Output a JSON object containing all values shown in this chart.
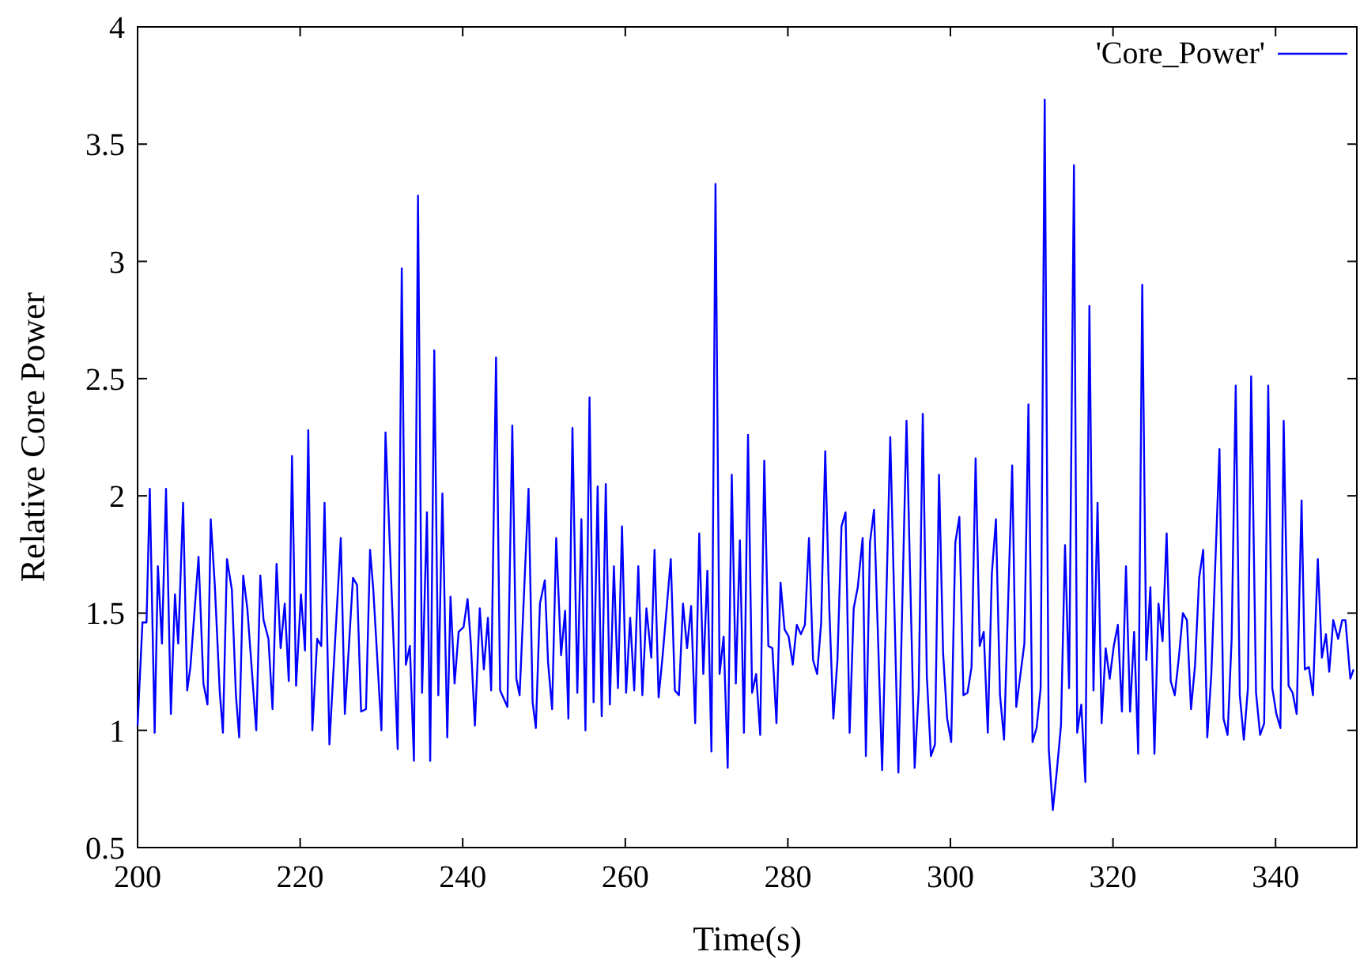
{
  "chart_data": {
    "type": "line",
    "xlabel": "Time(s)",
    "ylabel": "Relative Core Power",
    "xlim": [
      200,
      350
    ],
    "ylim": [
      0.5,
      4
    ],
    "xticks": [
      200,
      220,
      240,
      260,
      280,
      300,
      320,
      340
    ],
    "yticks": [
      0.5,
      1,
      1.5,
      2,
      2.5,
      3,
      3.5,
      4
    ],
    "grid": false,
    "legend": "top right",
    "marker": "none",
    "line_style": "solid",
    "series": [
      {
        "name": "'Core_Power'",
        "color": "#0000ff",
        "x": [
          200.0,
          200.6,
          201.1,
          201.5,
          202.1,
          202.5,
          203.0,
          203.5,
          204.1,
          204.6,
          205.0,
          205.6,
          206.1,
          206.5,
          207.5,
          208.1,
          208.6,
          209.0,
          209.5,
          210.1,
          210.5,
          211.0,
          211.6,
          212.1,
          212.5,
          213.0,
          213.5,
          214.6,
          215.1,
          215.5,
          216.1,
          216.6,
          217.1,
          217.6,
          218.1,
          218.6,
          219.0,
          219.5,
          220.1,
          220.6,
          221.0,
          221.5,
          222.1,
          222.6,
          223.0,
          223.6,
          225.0,
          225.5,
          226.5,
          227.0,
          227.5,
          228.1,
          228.6,
          229.0,
          230.0,
          230.5,
          232.0,
          232.5,
          233.0,
          233.5,
          234.0,
          234.5,
          235.0,
          235.6,
          236.0,
          236.5,
          237.0,
          237.5,
          238.1,
          238.5,
          239.0,
          239.5,
          240.1,
          240.6,
          241.0,
          241.5,
          242.1,
          242.6,
          243.1,
          243.5,
          244.1,
          244.6,
          245.5,
          246.1,
          246.6,
          247.0,
          248.1,
          248.6,
          249.0,
          249.5,
          250.1,
          250.5,
          251.0,
          251.5,
          252.1,
          252.6,
          253.0,
          253.5,
          254.1,
          254.6,
          255.1,
          255.6,
          256.1,
          256.6,
          257.1,
          257.6,
          258.1,
          258.6,
          259.1,
          259.6,
          260.1,
          260.6,
          261.1,
          261.6,
          262.1,
          262.6,
          263.2,
          263.6,
          264.1,
          264.6,
          265.6,
          266.1,
          266.6,
          267.1,
          267.6,
          268.1,
          268.6,
          269.1,
          269.6,
          270.1,
          270.6,
          271.1,
          271.6,
          272.1,
          272.6,
          273.1,
          273.6,
          274.1,
          274.6,
          275.1,
          275.6,
          276.1,
          276.6,
          277.1,
          277.6,
          278.1,
          278.6,
          279.1,
          279.6,
          280.1,
          280.6,
          281.1,
          281.6,
          282.1,
          282.6,
          283.1,
          283.6,
          284.1,
          284.6,
          285.1,
          285.6,
          286.1,
          286.6,
          287.1,
          287.6,
          288.1,
          288.6,
          289.2,
          289.6,
          290.1,
          290.6,
          291.6,
          292.6,
          293.6,
          294.6,
          295.6,
          296.1,
          296.6,
          297.1,
          297.6,
          298.1,
          298.6,
          299.1,
          299.6,
          300.1,
          300.6,
          301.1,
          301.6,
          302.1,
          302.6,
          303.1,
          303.6,
          304.1,
          304.6,
          305.1,
          305.6,
          306.1,
          306.6,
          307.6,
          308.1,
          309.1,
          309.6,
          310.1,
          310.6,
          311.1,
          311.6,
          312.1,
          312.6,
          313.1,
          313.6,
          314.1,
          314.6,
          315.2,
          315.6,
          316.1,
          316.6,
          317.1,
          317.6,
          318.1,
          318.6,
          319.1,
          319.6,
          320.1,
          320.6,
          321.1,
          321.6,
          322.1,
          322.6,
          323.1,
          323.6,
          324.1,
          324.6,
          325.1,
          325.6,
          326.1,
          326.6,
          327.1,
          327.6,
          328.1,
          328.6,
          329.1,
          329.6,
          330.1,
          330.6,
          331.1,
          331.6,
          332.1,
          333.1,
          333.6,
          334.1,
          334.6,
          335.1,
          335.6,
          336.1,
          336.6,
          337.0,
          337.6,
          338.1,
          338.6,
          339.1,
          339.6,
          340.1,
          340.6,
          341.0,
          341.6,
          342.1,
          342.6,
          343.2,
          343.6,
          344.1,
          344.6,
          345.2,
          345.7,
          346.2,
          346.6,
          347.1,
          347.7,
          348.2,
          348.6,
          349.2,
          349.6
        ],
        "values": [
          1.02,
          1.46,
          1.46,
          2.03,
          0.99,
          1.7,
          1.37,
          2.03,
          1.07,
          1.58,
          1.37,
          1.97,
          1.17,
          1.27,
          1.74,
          1.2,
          1.11,
          1.9,
          1.62,
          1.17,
          0.99,
          1.73,
          1.6,
          1.15,
          0.97,
          1.66,
          1.52,
          1.0,
          1.66,
          1.47,
          1.39,
          1.09,
          1.71,
          1.35,
          1.54,
          1.21,
          2.17,
          1.19,
          1.58,
          1.34,
          2.28,
          1.0,
          1.39,
          1.36,
          1.97,
          0.94,
          1.82,
          1.07,
          1.65,
          1.62,
          1.08,
          1.09,
          1.77,
          1.6,
          1.0,
          2.27,
          0.92,
          2.97,
          1.28,
          1.36,
          0.87,
          3.28,
          1.16,
          1.93,
          0.87,
          2.62,
          1.15,
          2.01,
          0.97,
          1.57,
          1.2,
          1.42,
          1.44,
          1.56,
          1.37,
          1.02,
          1.52,
          1.26,
          1.48,
          1.17,
          2.59,
          1.17,
          1.1,
          2.3,
          1.22,
          1.15,
          2.03,
          1.12,
          1.01,
          1.54,
          1.64,
          1.29,
          1.09,
          1.82,
          1.32,
          1.51,
          1.05,
          2.29,
          1.16,
          1.9,
          1.0,
          2.42,
          1.12,
          2.04,
          1.06,
          2.05,
          1.11,
          1.7,
          1.18,
          1.87,
          1.16,
          1.48,
          1.17,
          1.7,
          1.15,
          1.52,
          1.31,
          1.77,
          1.14,
          1.32,
          1.73,
          1.17,
          1.15,
          1.54,
          1.35,
          1.53,
          1.03,
          1.84,
          1.24,
          1.68,
          0.91,
          3.33,
          1.24,
          1.4,
          0.84,
          2.09,
          1.2,
          1.81,
          0.99,
          2.26,
          1.16,
          1.24,
          0.98,
          2.15,
          1.36,
          1.35,
          1.03,
          1.63,
          1.43,
          1.4,
          1.28,
          1.45,
          1.41,
          1.45,
          1.82,
          1.3,
          1.24,
          1.46,
          2.19,
          1.52,
          1.05,
          1.3,
          1.87,
          1.93,
          0.99,
          1.52,
          1.61,
          1.82,
          0.89,
          1.8,
          1.94,
          0.83,
          2.25,
          0.82,
          2.32,
          0.84,
          1.17,
          2.35,
          1.23,
          0.89,
          0.94,
          2.09,
          1.33,
          1.05,
          0.95,
          1.8,
          1.91,
          1.15,
          1.16,
          1.27,
          2.16,
          1.36,
          1.42,
          0.99,
          1.67,
          1.9,
          1.15,
          0.96,
          2.13,
          1.1,
          1.37,
          2.39,
          0.95,
          1.01,
          1.18,
          3.69,
          0.92,
          0.66,
          0.83,
          1.02,
          1.79,
          1.18,
          3.41,
          0.99,
          1.11,
          0.78,
          2.81,
          1.17,
          1.97,
          1.03,
          1.35,
          1.22,
          1.36,
          1.45,
          1.08,
          1.7,
          1.08,
          1.42,
          0.9,
          2.9,
          1.3,
          1.61,
          0.9,
          1.54,
          1.38,
          1.84,
          1.21,
          1.15,
          1.31,
          1.5,
          1.47,
          1.09,
          1.28,
          1.65,
          1.77,
          0.97,
          1.24,
          2.2,
          1.05,
          0.98,
          1.39,
          2.47,
          1.15,
          0.96,
          1.18,
          2.51,
          1.16,
          0.98,
          1.03,
          2.47,
          1.18,
          1.07,
          1.01,
          2.32,
          1.19,
          1.16,
          1.07,
          1.98,
          1.26,
          1.27,
          1.15,
          1.73,
          1.31,
          1.41,
          1.25,
          1.47,
          1.39,
          1.47,
          1.47,
          1.22,
          1.26
        ]
      }
    ]
  }
}
